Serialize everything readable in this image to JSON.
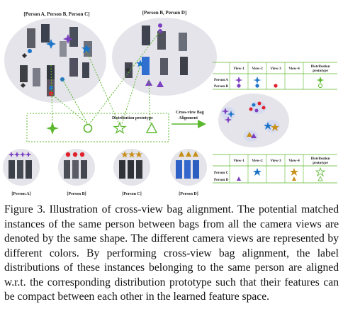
{
  "figure": {
    "bag1_label": "[Person A, Person B, Person C]",
    "bag2_label": "[Person B, Person D]",
    "prototype_label": "Distribution prototype",
    "alignment_label_line1": "Cross-view Bag",
    "alignment_label_line2": "Alignment",
    "table_headers": [
      "View-1",
      "View-2",
      "View-3",
      "View-4"
    ],
    "table_last_header_line1": "Distribution",
    "table_last_header_line2": "prototype",
    "table1_rows": [
      "Person A",
      "Person B"
    ],
    "table2_rows": [
      "Person C",
      "Person D"
    ],
    "person_labels": [
      "[Person A]",
      "[Person B]",
      "[Person C]",
      "[Person D]"
    ],
    "colors": {
      "view1": "#7b3fbf",
      "view2": "#1c74c9",
      "view3": "#e0202a",
      "view4": "#c8901a",
      "prototype": "#5cb82e",
      "ellipse": "#e4e4ea"
    },
    "icons": [
      "plus-star-icon",
      "circle-icon",
      "star-icon",
      "triangle-icon"
    ]
  },
  "caption": {
    "label": "Figure 3.",
    "text": "Illustration of cross-view bag alignment. The potential matched instances of the same person between bags from all the camera views are denoted by the same shape. The different camera views are represented by different colors. By performing cross-view bag alignment, the label distributions of these instances belonging to the same person are aligned w.r.t. the corresponding distribution prototype such that their features can be compact between each other in the learned feature space."
  }
}
